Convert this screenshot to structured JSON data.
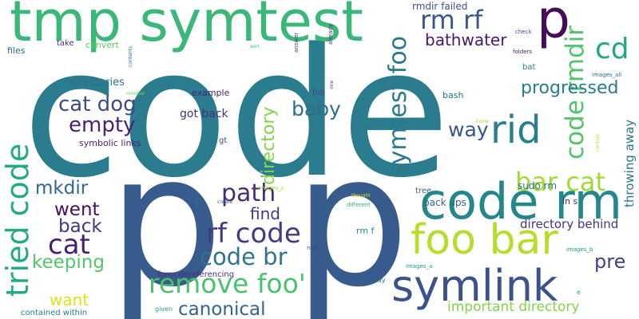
{
  "words": [
    {
      "text": "code",
      "color": "#2a7c8e"
    },
    {
      "text": "p",
      "color": "#375b8c"
    },
    {
      "text": "p",
      "color": "#375b8c"
    },
    {
      "text": "tmp symtest",
      "color": "#3bb779"
    },
    {
      "text": "p",
      "color": "#440d55"
    },
    {
      "text": "code rm",
      "color": "#25878e"
    },
    {
      "text": "foo bar",
      "color": "#b5dd2b"
    },
    {
      "text": "symlink",
      "color": "#3b528b"
    },
    {
      "text": "rid",
      "color": "#27808e"
    },
    {
      "text": "tried code",
      "color": "#23a983"
    },
    {
      "text": "symtest foo",
      "color": "#2a798e"
    },
    {
      "text": "code rmdir",
      "color": "#52c469"
    },
    {
      "text": "cd",
      "color": "#22a884"
    },
    {
      "text": "rm rf",
      "color": "#38588c"
    },
    {
      "text": "remove foo'",
      "color": "#4ac26d"
    },
    {
      "text": "rf code",
      "color": "#443a83"
    },
    {
      "text": "code br",
      "color": "#2b758e"
    },
    {
      "text": "cat dog",
      "color": "#3e4a89"
    },
    {
      "text": "empty",
      "color": "#482274"
    },
    {
      "text": "path",
      "color": "#472c7a"
    },
    {
      "text": "bar cat",
      "color": "#a2da37"
    },
    {
      "text": "cat",
      "color": "#481f70"
    },
    {
      "text": "progressed",
      "color": "#287c8e"
    },
    {
      "text": "baby",
      "color": "#2e6e8e"
    },
    {
      "text": "way",
      "color": "#39568c"
    },
    {
      "text": "bathwater",
      "color": "#481769"
    },
    {
      "text": "canonical",
      "color": "#32648e"
    },
    {
      "text": "keeping",
      "color": "#52c569"
    },
    {
      "text": "directory",
      "color": "#86d549"
    },
    {
      "text": "went",
      "color": "#470d60"
    },
    {
      "text": "back",
      "color": "#453581"
    },
    {
      "text": "mkdir",
      "color": "#31688e"
    },
    {
      "text": "find",
      "color": "#453882"
    },
    {
      "text": "pre",
      "color": "#424086"
    },
    {
      "text": "want",
      "color": "#dde318"
    },
    {
      "text": "important directory",
      "color": "#84d44b"
    },
    {
      "text": "directory behind",
      "color": "#46337f"
    },
    {
      "text": "throwing away",
      "color": "#2a768e"
    },
    {
      "text": "directories",
      "color": "#2c728e"
    },
    {
      "text": "got back",
      "color": "#46307e"
    },
    {
      "text": "example",
      "color": "#482173"
    },
    {
      "text": "rmdir failed",
      "color": "#3b528b"
    },
    {
      "text": "symbolic links",
      "color": "#481d6f"
    },
    {
      "text": "files",
      "color": "#33638d"
    },
    {
      "text": "bash",
      "color": "#2d708e"
    },
    {
      "text": "convert",
      "color": "#5ec962"
    },
    {
      "text": "take",
      "color": "#472d7b"
    },
    {
      "text": "full",
      "color": "#3f4788"
    },
    {
      "text": "gt",
      "color": "#3c4f8a"
    },
    {
      "text": "sudo rm",
      "color": "#2b758e"
    },
    {
      "text": "back ups",
      "color": "#32648e"
    },
    {
      "text": "tree",
      "color": "#375a8c"
    },
    {
      "text": "ln s",
      "color": "#482878"
    },
    {
      "text": "rm f",
      "color": "#21918c"
    },
    {
      "text": "bat",
      "color": "#26828e"
    },
    {
      "text": "form dereferencing",
      "color": "#472e7c"
    },
    {
      "text": "contained within",
      "color": "#287c8e"
    },
    {
      "text": "given",
      "color": "#1f9e89"
    },
    {
      "text": "may",
      "color": "#2e6e8e"
    },
    {
      "text": "images_c",
      "color": "#a5db36"
    },
    {
      "text": "different",
      "color": "#2eb37c"
    },
    {
      "text": "thought",
      "color": "#dde318"
    },
    {
      "text": "new",
      "color": "#414487"
    },
    {
      "text": "images_a",
      "color": "#1e9b8a"
    },
    {
      "text": "images_b",
      "color": "#21918c"
    },
    {
      "text": "images_all",
      "color": "#2c718e"
    },
    {
      "text": "check",
      "color": "#3e4989"
    },
    {
      "text": "folders",
      "color": "#471365"
    },
    {
      "text": "already",
      "color": "#46327e"
    },
    {
      "text": "answer",
      "color": "#453781"
    },
    {
      "text": "sort",
      "color": "#3dbc74"
    },
    {
      "text": "contents",
      "color": "#2c728e"
    },
    {
      "text": "number",
      "color": "#6ccd5a"
    },
    {
      "text": "one",
      "color": "#5b3bb0"
    },
    {
      "text": "feeling",
      "color": "#2c728e"
    },
    {
      "text": "create",
      "color": "#365d8d"
    },
    {
      "text": "know",
      "color": "#a0da39"
    },
    {
      "text": "contain",
      "color": "#c2df23"
    },
    {
      "text": "e",
      "color": "#25ab82"
    }
  ]
}
